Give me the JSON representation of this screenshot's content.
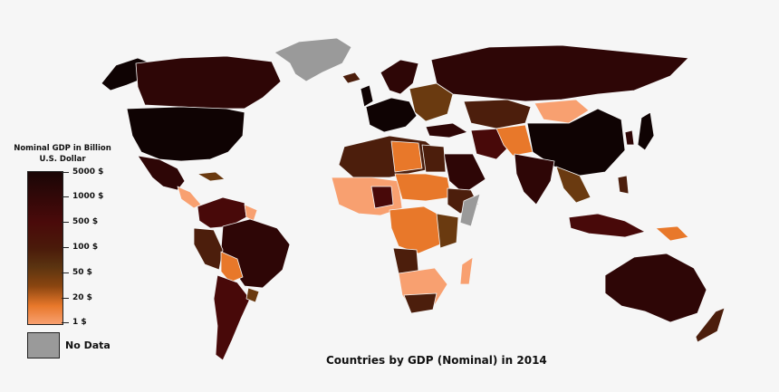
{
  "title": "Countries by GDP (Nominal) in 2014",
  "legend": {
    "title_line1": "Nominal GDP in Billion",
    "title_line2": "U.S. Dollar",
    "labels": [
      "5000 $",
      "1000 $",
      "500 $",
      "100 $",
      "50 $",
      "20 $",
      "1 $"
    ],
    "no_data": "No Data"
  },
  "colors": {
    "background": "#f6f6f6",
    "ocean": "#f6f6f6",
    "no_data": "#9a9a9a",
    "tier_5000": "#0f0303",
    "tier_1000": "#2e0606",
    "tier_500": "#480909",
    "tier_100": "#4c1e0c",
    "tier_50": "#6a3a10",
    "tier_20": "#e8782a",
    "tier_1": "#f8a070"
  }
}
